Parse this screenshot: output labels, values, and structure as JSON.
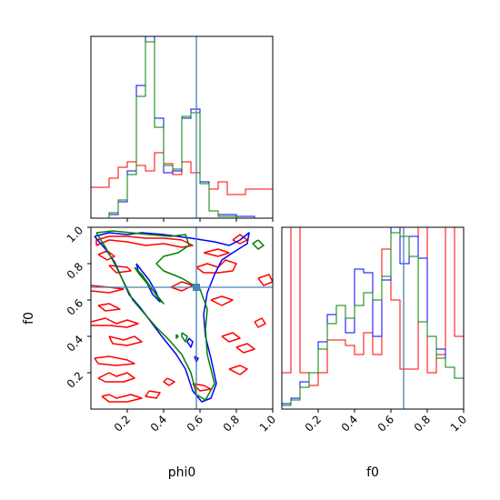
{
  "chart_data": {
    "type": "corner",
    "params": [
      "phi0",
      "f0"
    ],
    "xlabel_left": "phi0",
    "xlabel_right": "f0",
    "ylabel_left": "f0",
    "truth": {
      "phi0": 0.58,
      "f0": 0.67
    },
    "colors": {
      "blue": "#0000ff",
      "green": "#008000",
      "red": "#ff0000",
      "truth": "#4682b4"
    },
    "ticks": {
      "values": [
        0.2,
        0.4,
        0.6,
        0.8,
        1.0
      ],
      "labels": [
        "0.2",
        "0.4",
        "0.6",
        "0.8",
        "1.0"
      ]
    },
    "hist_phi0": {
      "bin_edges": [
        0.0,
        0.1,
        0.15,
        0.2,
        0.25,
        0.3,
        0.35,
        0.4,
        0.45,
        0.5,
        0.55,
        0.6,
        0.65,
        0.7,
        0.75,
        0.8,
        0.85,
        0.9,
        0.95,
        1.0
      ],
      "blue": [
        0.0,
        0.02,
        0.09,
        0.26,
        0.73,
        1.05,
        0.55,
        0.25,
        0.26,
        0.55,
        0.6,
        0.2,
        0.04,
        0.02,
        0.02,
        0.01,
        0.01,
        0.0,
        0.0
      ],
      "green": [
        0.0,
        0.03,
        0.1,
        0.24,
        0.67,
        0.97,
        0.5,
        0.29,
        0.27,
        0.56,
        0.58,
        0.19,
        0.04,
        0.01,
        0.01,
        0.0,
        0.0,
        0.0,
        0.0
      ],
      "red": [
        0.17,
        0.22,
        0.28,
        0.31,
        0.29,
        0.26,
        0.36,
        0.3,
        0.24,
        0.31,
        0.25,
        0.19,
        0.16,
        0.2,
        0.13,
        0.13,
        0.16,
        0.16,
        0.16
      ]
    },
    "hist_f0": {
      "bin_edges": [
        0.0,
        0.05,
        0.1,
        0.15,
        0.2,
        0.25,
        0.3,
        0.35,
        0.4,
        0.45,
        0.5,
        0.55,
        0.6,
        0.65,
        0.7,
        0.75,
        0.8,
        0.85,
        0.9,
        0.95,
        1.0
      ],
      "blue": [
        0.03,
        0.06,
        0.15,
        0.2,
        0.37,
        0.52,
        0.57,
        0.42,
        0.77,
        0.75,
        0.4,
        0.71,
        1.05,
        0.8,
        0.95,
        0.83,
        0.4,
        0.33,
        0.23,
        0.17
      ],
      "green": [
        0.02,
        0.05,
        0.12,
        0.2,
        0.33,
        0.47,
        0.57,
        0.5,
        0.57,
        0.64,
        0.6,
        0.73,
        0.97,
        0.95,
        0.84,
        0.48,
        0.4,
        0.28,
        0.23,
        0.17
      ],
      "red": [
        0.2,
        1.0,
        0.2,
        0.13,
        0.2,
        0.38,
        0.38,
        0.35,
        0.3,
        0.42,
        0.3,
        0.88,
        0.6,
        0.22,
        0.22,
        1.0,
        0.2,
        0.3,
        1.0,
        0.4
      ]
    },
    "contours": {
      "blue": [
        [
          [
            0.02,
            0.95
          ],
          [
            0.1,
            0.97
          ],
          [
            0.2,
            0.96
          ],
          [
            0.28,
            0.97
          ],
          [
            0.4,
            0.96
          ],
          [
            0.55,
            0.94
          ],
          [
            0.68,
            0.92
          ],
          [
            0.76,
            0.9
          ],
          [
            0.82,
            0.93
          ],
          [
            0.87,
            0.97
          ],
          [
            0.86,
            0.91
          ],
          [
            0.78,
            0.86
          ],
          [
            0.72,
            0.82
          ],
          [
            0.68,
            0.74
          ],
          [
            0.64,
            0.64
          ],
          [
            0.62,
            0.52
          ],
          [
            0.63,
            0.4
          ],
          [
            0.66,
            0.28
          ],
          [
            0.69,
            0.14
          ],
          [
            0.66,
            0.06
          ],
          [
            0.61,
            0.04
          ],
          [
            0.56,
            0.1
          ],
          [
            0.52,
            0.22
          ],
          [
            0.47,
            0.3
          ],
          [
            0.39,
            0.4
          ],
          [
            0.33,
            0.48
          ],
          [
            0.27,
            0.56
          ],
          [
            0.21,
            0.63
          ],
          [
            0.17,
            0.72
          ],
          [
            0.13,
            0.81
          ],
          [
            0.08,
            0.88
          ],
          [
            0.02,
            0.95
          ]
        ],
        [
          [
            0.25,
            0.8
          ],
          [
            0.28,
            0.76
          ],
          [
            0.32,
            0.71
          ],
          [
            0.36,
            0.64
          ],
          [
            0.38,
            0.59
          ],
          [
            0.34,
            0.63
          ],
          [
            0.3,
            0.71
          ],
          [
            0.26,
            0.76
          ],
          [
            0.25,
            0.8
          ]
        ],
        [
          [
            0.54,
            0.39
          ],
          [
            0.56,
            0.37
          ],
          [
            0.55,
            0.34
          ],
          [
            0.53,
            0.37
          ],
          [
            0.54,
            0.39
          ]
        ],
        [
          [
            0.57,
            0.29
          ],
          [
            0.59,
            0.28
          ],
          [
            0.58,
            0.26
          ],
          [
            0.57,
            0.29
          ]
        ]
      ],
      "green": [
        [
          [
            0.03,
            0.97
          ],
          [
            0.12,
            0.98
          ],
          [
            0.22,
            0.97
          ],
          [
            0.32,
            0.96
          ],
          [
            0.44,
            0.95
          ],
          [
            0.52,
            0.96
          ],
          [
            0.54,
            0.9
          ],
          [
            0.48,
            0.86
          ],
          [
            0.4,
            0.84
          ],
          [
            0.36,
            0.8
          ],
          [
            0.4,
            0.76
          ],
          [
            0.5,
            0.72
          ],
          [
            0.6,
            0.66
          ],
          [
            0.64,
            0.55
          ],
          [
            0.63,
            0.44
          ],
          [
            0.64,
            0.3
          ],
          [
            0.68,
            0.14
          ],
          [
            0.63,
            0.05
          ],
          [
            0.58,
            0.08
          ],
          [
            0.55,
            0.2
          ],
          [
            0.5,
            0.3
          ],
          [
            0.43,
            0.38
          ],
          [
            0.36,
            0.45
          ],
          [
            0.29,
            0.53
          ],
          [
            0.23,
            0.6
          ],
          [
            0.18,
            0.7
          ],
          [
            0.13,
            0.8
          ],
          [
            0.08,
            0.89
          ],
          [
            0.03,
            0.97
          ]
        ],
        [
          [
            0.24,
            0.78
          ],
          [
            0.28,
            0.74
          ],
          [
            0.33,
            0.67
          ],
          [
            0.37,
            0.61
          ],
          [
            0.4,
            0.58
          ],
          [
            0.36,
            0.63
          ],
          [
            0.31,
            0.69
          ],
          [
            0.26,
            0.75
          ],
          [
            0.24,
            0.78
          ]
        ],
        [
          [
            0.5,
            0.42
          ],
          [
            0.53,
            0.4
          ],
          [
            0.52,
            0.37
          ],
          [
            0.5,
            0.4
          ],
          [
            0.5,
            0.42
          ]
        ],
        [
          [
            0.47,
            0.41
          ],
          [
            0.48,
            0.4
          ],
          [
            0.47,
            0.39
          ],
          [
            0.47,
            0.41
          ]
        ],
        [
          [
            0.92,
            0.93
          ],
          [
            0.95,
            0.9
          ],
          [
            0.92,
            0.88
          ],
          [
            0.89,
            0.91
          ],
          [
            0.92,
            0.93
          ]
        ]
      ],
      "red": [
        [
          [
            0.03,
            0.9
          ],
          [
            0.1,
            0.93
          ],
          [
            0.2,
            0.92
          ],
          [
            0.3,
            0.9
          ],
          [
            0.4,
            0.91
          ],
          [
            0.5,
            0.89
          ],
          [
            0.56,
            0.9
          ],
          [
            0.5,
            0.93
          ],
          [
            0.4,
            0.94
          ],
          [
            0.3,
            0.94
          ],
          [
            0.2,
            0.95
          ],
          [
            0.1,
            0.95
          ],
          [
            0.03,
            0.93
          ],
          [
            0.03,
            0.9
          ]
        ],
        [
          [
            0.04,
            0.85
          ],
          [
            0.09,
            0.87
          ],
          [
            0.13,
            0.84
          ],
          [
            0.09,
            0.82
          ],
          [
            0.04,
            0.85
          ]
        ],
        [
          [
            0.1,
            0.79
          ],
          [
            0.2,
            0.78
          ],
          [
            0.22,
            0.76
          ],
          [
            0.14,
            0.75
          ],
          [
            0.1,
            0.79
          ]
        ],
        [
          [
            0.0,
            0.68
          ],
          [
            0.1,
            0.67
          ],
          [
            0.18,
            0.66
          ],
          [
            0.1,
            0.64
          ],
          [
            0.0,
            0.65
          ]
        ],
        [
          [
            0.04,
            0.57
          ],
          [
            0.1,
            0.58
          ],
          [
            0.16,
            0.55
          ],
          [
            0.08,
            0.54
          ],
          [
            0.04,
            0.57
          ]
        ],
        [
          [
            0.0,
            0.48
          ],
          [
            0.08,
            0.5
          ],
          [
            0.14,
            0.47
          ],
          [
            0.2,
            0.49
          ],
          [
            0.26,
            0.47
          ],
          [
            0.2,
            0.45
          ],
          [
            0.1,
            0.46
          ],
          [
            0.0,
            0.46
          ]
        ],
        [
          [
            0.1,
            0.4
          ],
          [
            0.18,
            0.38
          ],
          [
            0.24,
            0.4
          ],
          [
            0.28,
            0.37
          ],
          [
            0.2,
            0.35
          ],
          [
            0.12,
            0.36
          ],
          [
            0.1,
            0.4
          ]
        ],
        [
          [
            0.02,
            0.28
          ],
          [
            0.1,
            0.29
          ],
          [
            0.2,
            0.27
          ],
          [
            0.24,
            0.25
          ],
          [
            0.14,
            0.24
          ],
          [
            0.04,
            0.25
          ],
          [
            0.02,
            0.28
          ]
        ],
        [
          [
            0.04,
            0.17
          ],
          [
            0.1,
            0.2
          ],
          [
            0.14,
            0.18
          ],
          [
            0.2,
            0.2
          ],
          [
            0.24,
            0.17
          ],
          [
            0.18,
            0.15
          ],
          [
            0.08,
            0.15
          ],
          [
            0.04,
            0.17
          ]
        ],
        [
          [
            0.06,
            0.07
          ],
          [
            0.1,
            0.08
          ],
          [
            0.14,
            0.06
          ],
          [
            0.22,
            0.08
          ],
          [
            0.28,
            0.06
          ],
          [
            0.2,
            0.04
          ],
          [
            0.1,
            0.04
          ],
          [
            0.06,
            0.07
          ]
        ],
        [
          [
            0.32,
            0.1
          ],
          [
            0.38,
            0.09
          ],
          [
            0.36,
            0.06
          ],
          [
            0.3,
            0.07
          ],
          [
            0.32,
            0.1
          ]
        ],
        [
          [
            0.42,
            0.17
          ],
          [
            0.46,
            0.15
          ],
          [
            0.43,
            0.13
          ],
          [
            0.4,
            0.15
          ],
          [
            0.42,
            0.17
          ]
        ],
        [
          [
            0.44,
            0.67
          ],
          [
            0.5,
            0.7
          ],
          [
            0.56,
            0.68
          ],
          [
            0.5,
            0.65
          ],
          [
            0.44,
            0.67
          ]
        ],
        [
          [
            0.58,
            0.78
          ],
          [
            0.64,
            0.8
          ],
          [
            0.7,
            0.78
          ],
          [
            0.74,
            0.82
          ],
          [
            0.8,
            0.8
          ],
          [
            0.78,
            0.76
          ],
          [
            0.7,
            0.75
          ],
          [
            0.62,
            0.75
          ],
          [
            0.58,
            0.78
          ]
        ],
        [
          [
            0.62,
            0.86
          ],
          [
            0.7,
            0.88
          ],
          [
            0.76,
            0.86
          ],
          [
            0.7,
            0.84
          ],
          [
            0.62,
            0.86
          ]
        ],
        [
          [
            0.66,
            0.6
          ],
          [
            0.72,
            0.62
          ],
          [
            0.78,
            0.6
          ],
          [
            0.72,
            0.57
          ],
          [
            0.66,
            0.6
          ]
        ],
        [
          [
            0.72,
            0.4
          ],
          [
            0.78,
            0.42
          ],
          [
            0.82,
            0.39
          ],
          [
            0.76,
            0.37
          ],
          [
            0.72,
            0.4
          ]
        ],
        [
          [
            0.8,
            0.34
          ],
          [
            0.86,
            0.36
          ],
          [
            0.9,
            0.33
          ],
          [
            0.84,
            0.31
          ],
          [
            0.8,
            0.34
          ]
        ],
        [
          [
            0.56,
            0.14
          ],
          [
            0.62,
            0.13
          ],
          [
            0.66,
            0.11
          ],
          [
            0.6,
            0.1
          ],
          [
            0.56,
            0.14
          ]
        ],
        [
          [
            0.76,
            0.22
          ],
          [
            0.82,
            0.24
          ],
          [
            0.86,
            0.22
          ],
          [
            0.82,
            0.19
          ],
          [
            0.76,
            0.22
          ]
        ],
        [
          [
            0.92,
            0.72
          ],
          [
            0.98,
            0.74
          ],
          [
            1.0,
            0.7
          ],
          [
            0.95,
            0.68
          ],
          [
            0.92,
            0.72
          ]
        ],
        [
          [
            0.9,
            0.48
          ],
          [
            0.94,
            0.5
          ],
          [
            0.96,
            0.47
          ],
          [
            0.92,
            0.45
          ],
          [
            0.9,
            0.48
          ]
        ],
        [
          [
            0.78,
            0.93
          ],
          [
            0.82,
            0.96
          ],
          [
            0.86,
            0.93
          ],
          [
            0.82,
            0.91
          ],
          [
            0.78,
            0.93
          ]
        ]
      ]
    }
  }
}
